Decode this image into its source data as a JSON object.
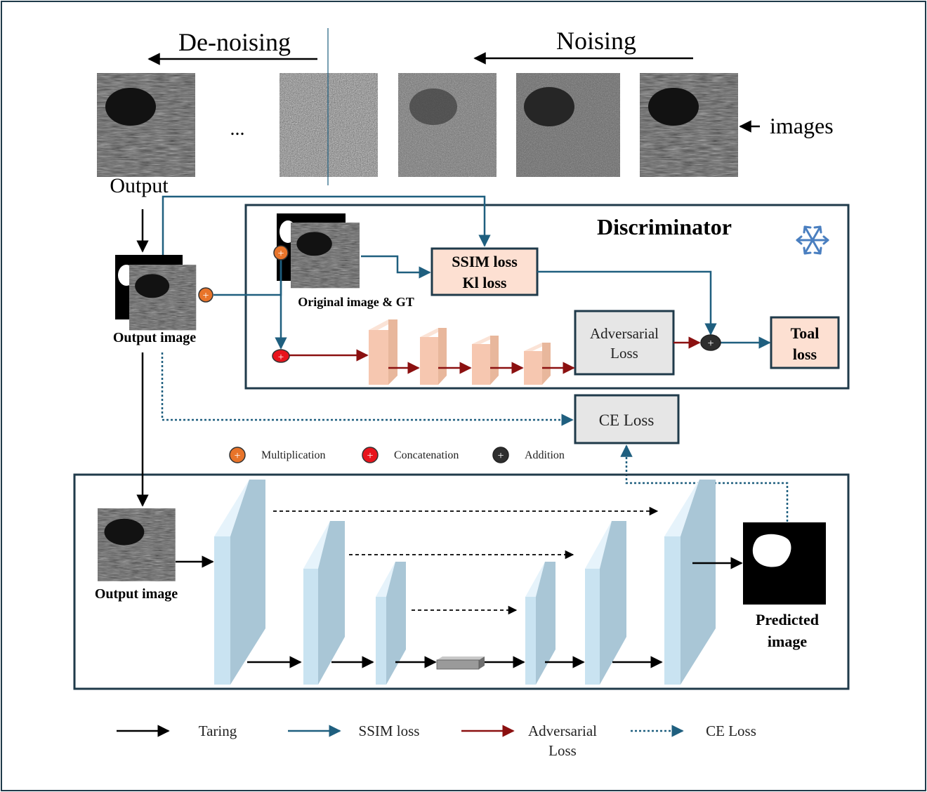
{
  "colors": {
    "frame": "#1f3a4a",
    "ssim": "#1f5f7f",
    "adversarial": "#8b1010",
    "training": "#000000",
    "loss_box_fill": "#fde0d2",
    "gray_box_fill": "#e6e6e6",
    "multiplication": "#e8742a",
    "concatenation": "#e8141c",
    "addition": "#2e2e2e",
    "disc_layer": "#f6c7b0",
    "unet_layer": "#c9e3f1",
    "bottleneck": "#9a9a9a",
    "snowflake": "#4a7fc0"
  },
  "header": {
    "denoising": "De-noising",
    "noising": "Noising",
    "ellipsis": "...",
    "images_label": "images",
    "output_label": "Output"
  },
  "discriminator": {
    "title": "Discriminator",
    "frozen_icon": "snowflake-icon",
    "original_label": "Original image  & GT",
    "ssim_box": {
      "line1": "SSIM loss",
      "line2": "Kl loss"
    },
    "adversarial_box": {
      "line1": "Adversarial",
      "line2": "Loss"
    },
    "total_box": {
      "line1": "Toal",
      "line2": "loss"
    }
  },
  "output_image_label": "Output  image",
  "ce_loss_box": "CE Loss",
  "operators": [
    {
      "label": "Multiplication",
      "icon": "multiplication-icon"
    },
    {
      "label": "Concatenation",
      "icon": "concatenation-icon"
    },
    {
      "label": "Addition",
      "icon": "addition-icon"
    }
  ],
  "unet": {
    "input_label": "Output  image",
    "predicted_line1": "Predicted",
    "predicted_line2": "image"
  },
  "legend": [
    {
      "label": "Taring",
      "style": "training"
    },
    {
      "label": "SSIM loss",
      "style": "ssim"
    },
    {
      "label": "Adversarial Loss",
      "line1": "Adversarial",
      "line2": "Loss",
      "style": "adversarial"
    },
    {
      "label": "CE Loss",
      "style": "ce"
    }
  ]
}
